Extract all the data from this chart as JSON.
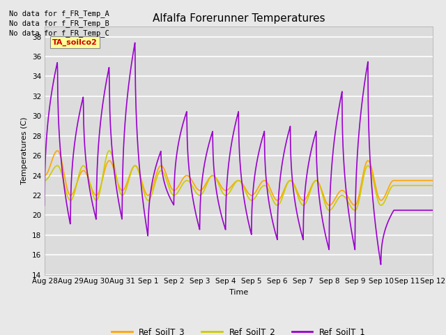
{
  "title": "Alfalfa Forerunner Temperatures",
  "xlabel": "Time",
  "ylabel": "Temperatures (C)",
  "ylim": [
    14,
    39
  ],
  "yticks": [
    14,
    16,
    18,
    20,
    22,
    24,
    26,
    28,
    30,
    32,
    34,
    36,
    38
  ],
  "bg_color": "#dcdcdc",
  "fig_color": "#e8e8e8",
  "grid_color": "white",
  "no_data_texts": [
    "No data for f_FR_Temp_A",
    "No data for f_FR_Temp_B",
    "No data for f_FR_Temp_C"
  ],
  "annotation_text": "TA_soilco2",
  "annotation_bg": "#ffff99",
  "annotation_fg": "#cc0000",
  "legend": [
    {
      "label": "Ref_SoilT_3",
      "color": "#ffa500"
    },
    {
      "label": "Ref_SoilT_2",
      "color": "#cccc00"
    },
    {
      "label": "Ref_SoilT_1",
      "color": "#9900cc"
    }
  ],
  "line_width": 1.2,
  "tick_labels": [
    "Aug 28",
    "Aug 29",
    "Aug 30",
    "Aug 31",
    "Sep 1",
    "Sep 2",
    "Sep 3",
    "Sep 4",
    "Sep 5",
    "Sep 6",
    "Sep 7",
    "Sep 8",
    "Sep 9",
    "Sep 10",
    "Sep 11",
    "Sep 12"
  ],
  "soilT1_peaks": [
    21.0,
    35.5,
    19.0,
    32.0,
    19.5,
    35.0,
    19.5,
    37.5,
    17.8,
    26.5,
    21.0,
    30.5,
    18.5,
    28.5,
    18.5,
    30.5,
    18.0,
    28.5,
    17.5,
    29.0,
    17.5,
    28.5,
    16.5,
    32.5,
    16.5,
    35.5,
    15.0,
    20.5
  ],
  "soilT3_peaks": [
    24.0,
    26.5,
    22.0,
    24.5,
    22.0,
    25.5,
    22.5,
    25.0,
    22.0,
    25.0,
    22.5,
    24.0,
    22.5,
    24.0,
    22.5,
    23.5,
    22.0,
    23.5,
    21.5,
    23.5,
    21.5,
    23.5,
    21.0,
    22.5,
    21.0,
    25.5,
    21.5,
    23.5
  ],
  "soilT2_peaks": [
    23.5,
    25.0,
    21.5,
    25.0,
    21.5,
    26.5,
    22.0,
    25.0,
    21.5,
    24.5,
    22.0,
    23.5,
    22.0,
    24.0,
    22.0,
    23.5,
    21.5,
    23.0,
    21.0,
    23.5,
    21.0,
    23.5,
    20.5,
    22.0,
    20.5,
    25.0,
    21.0,
    23.0
  ]
}
